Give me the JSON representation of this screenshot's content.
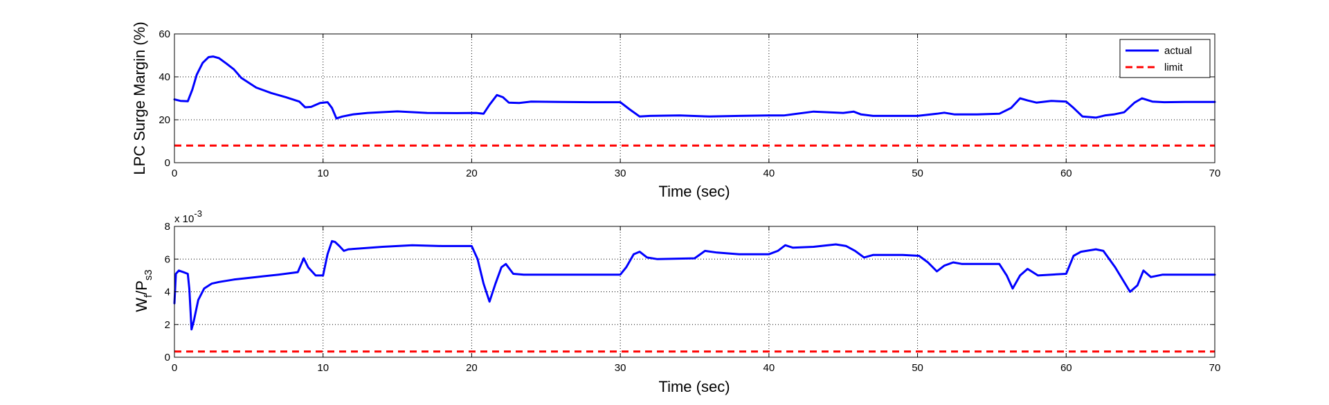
{
  "chart_data": [
    {
      "type": "line",
      "xlabel": "Time (sec)",
      "ylabel": "LPC Surge Margin (%)",
      "xlim": [
        0,
        70
      ],
      "ylim": [
        0,
        60
      ],
      "xticks": [
        0,
        10,
        20,
        30,
        40,
        50,
        60,
        70
      ],
      "yticks": [
        0,
        20,
        40,
        60
      ],
      "grid": true,
      "legend": {
        "position": "top-right",
        "entries": [
          "actual",
          "limit"
        ]
      },
      "series": [
        {
          "name": "actual",
          "color": "#0000ff",
          "style": "solid",
          "x": [
            0,
            0.4,
            0.9,
            1.2,
            1.5,
            1.9,
            2.3,
            2.6,
            3.0,
            3.5,
            4.0,
            4.5,
            5.5,
            6.5,
            7.5,
            8.4,
            8.8,
            9.2,
            9.8,
            10.3,
            10.6,
            10.9,
            11.3,
            12,
            13,
            15,
            17,
            19,
            20.3,
            20.8,
            21.2,
            21.7,
            22.1,
            22.5,
            23.2,
            24,
            26,
            28,
            30,
            30.6,
            31.3,
            32,
            34,
            36,
            38,
            40,
            41,
            43,
            45,
            45.7,
            46.2,
            47,
            50,
            51.3,
            51.8,
            52.5,
            54,
            55.5,
            56.3,
            56.9,
            57.4,
            58,
            59,
            60,
            60.5,
            61.1,
            62,
            62.6,
            63.2,
            63.9,
            64.6,
            65.1,
            65.8,
            66.6,
            68,
            70
          ],
          "y": [
            29.5,
            28.8,
            28.6,
            34,
            41,
            46.5,
            49.2,
            49.5,
            48.7,
            46.2,
            43.5,
            39.5,
            35,
            32.5,
            30.5,
            28.5,
            25.8,
            26,
            27.8,
            28.2,
            25.5,
            20.6,
            21.5,
            22.5,
            23.2,
            23.9,
            23.2,
            23.1,
            23.2,
            22.8,
            27,
            31.5,
            30.5,
            28,
            27.8,
            28.5,
            28.3,
            28.2,
            28.2,
            25,
            21.5,
            21.8,
            22,
            21.5,
            21.8,
            22,
            22,
            23.8,
            23.2,
            23.8,
            22.5,
            21.8,
            21.8,
            22.8,
            23.3,
            22.5,
            22.5,
            22.8,
            25.5,
            30,
            29,
            28,
            28.8,
            28.5,
            25.5,
            21.5,
            21,
            22,
            22.5,
            23.5,
            28,
            30,
            28.5,
            28.2,
            28.3,
            28.3
          ]
        },
        {
          "name": "limit",
          "color": "#ff0000",
          "style": "dashed",
          "x": [
            0,
            70
          ],
          "y": [
            8,
            8
          ]
        }
      ]
    },
    {
      "type": "line",
      "xlabel": "Time (sec)",
      "ylabel": {
        "main": "W",
        "sub1": "f",
        "sep": "/P",
        "sub2": "s3"
      },
      "exponent_label": {
        "base": "x 10",
        "power": "-3"
      },
      "xlim": [
        0,
        70
      ],
      "ylim": [
        0,
        8
      ],
      "xticks": [
        0,
        10,
        20,
        30,
        40,
        50,
        60,
        70
      ],
      "yticks": [
        0,
        2,
        4,
        6,
        8
      ],
      "grid": true,
      "series": [
        {
          "color": "#0000ff",
          "style": "solid",
          "x": [
            0,
            0.1,
            0.3,
            0.6,
            0.9,
            1.0,
            1.15,
            1.3,
            1.6,
            2.0,
            2.5,
            3.0,
            4.0,
            5.5,
            7.0,
            8.3,
            8.7,
            9.0,
            9.5,
            10.0,
            10.3,
            10.6,
            10.8,
            11.1,
            11.4,
            11.7,
            12.5,
            14,
            16,
            18,
            20,
            20.4,
            20.8,
            21.2,
            21.6,
            22.0,
            22.3,
            22.8,
            23.5,
            25,
            27,
            30,
            30.4,
            30.9,
            31.3,
            31.8,
            32.5,
            35,
            35.7,
            36.5,
            38,
            40,
            40.6,
            41.1,
            41.6,
            43,
            44.5,
            45.2,
            45.8,
            46.4,
            47,
            49,
            50.1,
            50.7,
            51.3,
            51.8,
            52.4,
            53,
            54,
            55.5,
            56,
            56.4,
            56.9,
            57.4,
            58.1,
            59,
            60,
            60.5,
            61,
            62,
            62.5,
            63.3,
            64.3,
            64.8,
            65.2,
            65.7,
            66.5,
            68,
            70
          ],
          "y": [
            3.3,
            5.1,
            5.3,
            5.2,
            5.1,
            4.2,
            1.7,
            2.2,
            3.5,
            4.2,
            4.5,
            4.6,
            4.75,
            4.9,
            5.05,
            5.2,
            6.05,
            5.5,
            5.0,
            5.0,
            6.3,
            7.1,
            7.05,
            6.8,
            6.5,
            6.6,
            6.65,
            6.75,
            6.85,
            6.8,
            6.8,
            6.0,
            4.5,
            3.4,
            4.5,
            5.5,
            5.7,
            5.1,
            5.05,
            5.05,
            5.05,
            5.05,
            5.5,
            6.3,
            6.45,
            6.1,
            6.0,
            6.05,
            6.5,
            6.4,
            6.3,
            6.3,
            6.5,
            6.85,
            6.7,
            6.75,
            6.9,
            6.8,
            6.5,
            6.1,
            6.25,
            6.25,
            6.2,
            5.8,
            5.25,
            5.6,
            5.8,
            5.7,
            5.7,
            5.7,
            5.0,
            4.2,
            5.0,
            5.4,
            5.0,
            5.05,
            5.1,
            6.2,
            6.45,
            6.6,
            6.5,
            5.5,
            4.0,
            4.4,
            5.3,
            4.9,
            5.05,
            5.05,
            5.05
          ]
        },
        {
          "color": "#ff0000",
          "style": "dashed",
          "x": [
            0,
            70
          ],
          "y": [
            0.35,
            0.35
          ]
        }
      ]
    }
  ]
}
